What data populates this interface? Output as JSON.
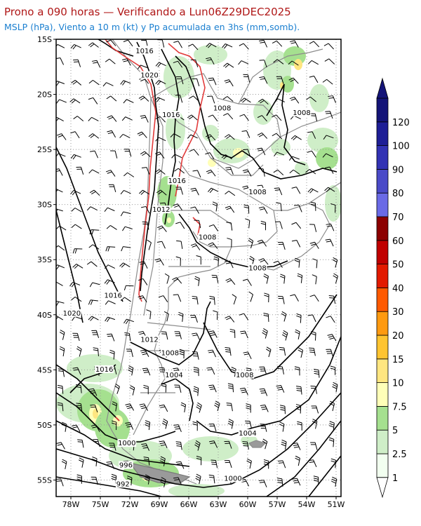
{
  "header": {
    "title": "Prono a 090 horas — Verificando a Lun06Z29DEC2025",
    "subtitle": "MSLP (hPa), Viento a 10 m (kt) y Pp acumulada en 3hs (mm,somb)."
  },
  "map": {
    "lat_labels": [
      "15S",
      "20S",
      "25S",
      "30S",
      "35S",
      "40S",
      "45S",
      "50S",
      "55S"
    ],
    "lon_labels": [
      "78W",
      "75W",
      "72W",
      "69W",
      "66W",
      "63W",
      "60W",
      "57W",
      "54W",
      "51W"
    ],
    "isobar_labels": [
      {
        "text": "1016",
        "lon": -70.5,
        "lat": -16.2
      },
      {
        "text": "1020",
        "lon": -70.0,
        "lat": -18.4
      },
      {
        "text": "1016",
        "lon": -67.8,
        "lat": -22.0
      },
      {
        "text": "1008",
        "lon": -62.6,
        "lat": -21.4
      },
      {
        "text": "1008",
        "lon": -54.5,
        "lat": -21.8
      },
      {
        "text": "1016",
        "lon": -67.2,
        "lat": -28.0
      },
      {
        "text": "1008",
        "lon": -59.0,
        "lat": -29.0
      },
      {
        "text": "1012",
        "lon": -68.8,
        "lat": -30.6
      },
      {
        "text": "1008",
        "lon": -64.1,
        "lat": -33.1
      },
      {
        "text": "1008",
        "lon": -59.0,
        "lat": -35.9
      },
      {
        "text": "1016",
        "lon": -73.7,
        "lat": -38.4
      },
      {
        "text": "1020",
        "lon": -77.9,
        "lat": -40.0
      },
      {
        "text": "1012",
        "lon": -70.0,
        "lat": -42.4
      },
      {
        "text": "1008",
        "lon": -67.9,
        "lat": -43.6
      },
      {
        "text": "1004",
        "lon": -67.5,
        "lat": -45.6
      },
      {
        "text": "1008",
        "lon": -60.3,
        "lat": -45.6
      },
      {
        "text": "1016",
        "lon": -74.6,
        "lat": -45.1
      },
      {
        "text": "1004",
        "lon": -60.0,
        "lat": -50.9
      },
      {
        "text": "1000",
        "lon": -72.3,
        "lat": -51.8
      },
      {
        "text": "996",
        "lon": -72.4,
        "lat": -53.8
      },
      {
        "text": "992",
        "lon": -72.7,
        "lat": -55.5
      },
      {
        "text": "1000",
        "lon": -61.5,
        "lat": -55.0
      }
    ]
  },
  "colorbar": {
    "labels": [
      "1",
      "2.5",
      "5",
      "7.5",
      "10",
      "15",
      "20",
      "30",
      "40",
      "50",
      "60",
      "70",
      "80",
      "90",
      "100",
      "120"
    ],
    "colors": [
      "#f2fff0",
      "#cfeec8",
      "#a5e08f",
      "#ffffb8",
      "#ffe680",
      "#ffc430",
      "#ff9a10",
      "#ff5a00",
      "#e21a00",
      "#c00000",
      "#8c0000",
      "#6a6ae6",
      "#4a4ac8",
      "#3232b4",
      "#1e1e96",
      "#141478"
    ]
  }
}
